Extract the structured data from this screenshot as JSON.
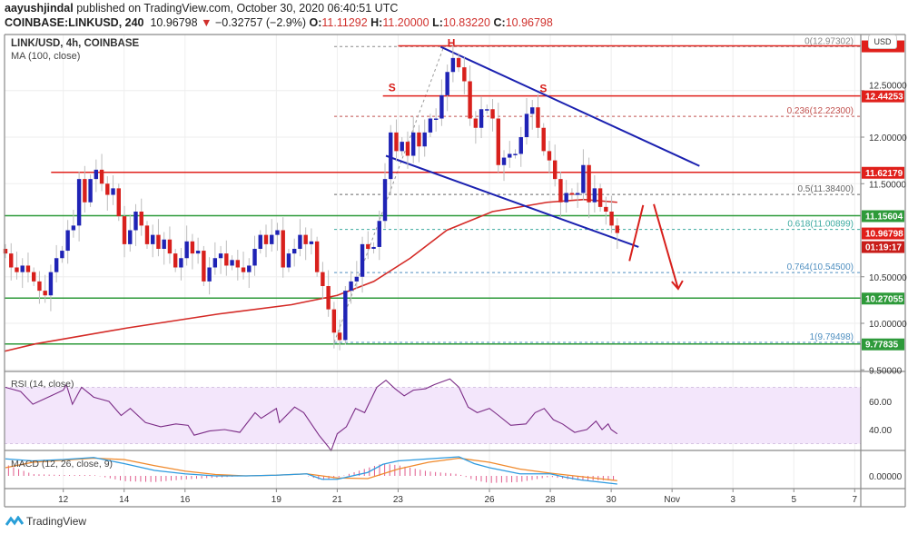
{
  "header": {
    "author": "aayushjindal",
    "published": " published on TradingView.com, October 30, 2020 06:40:51 UTC",
    "symbol": "COINBASE:LINKUSD, 240",
    "last": "10.96798",
    "change": "−0.32757 (−2.9%)",
    "o_label": "O:",
    "o": "11.11292",
    "h_label": "H:",
    "h": "11.20000",
    "l_label": "L:",
    "l": "10.83220",
    "c_label": "C:",
    "c": "10.96798",
    "down_icon": "triangle-down-icon"
  },
  "currency_button": "USD",
  "logo": "TradingView",
  "colors": {
    "up": "#1f23b5",
    "down": "#d8201c",
    "ma": "#d42a26",
    "rsi": "#7b2c86",
    "rsi_band": "#f3e6fb",
    "macd": "#2e9be0",
    "signal": "#f08a2c",
    "hist": "#e05a8c",
    "red_line": "#e0201b",
    "green_line": "#2e9a3a",
    "channel": "#1b21b0"
  },
  "chart_data": {
    "type": "candlestick",
    "title": "LINK/USD, 4h, COINBASE",
    "ma_label": "MA (100, close)",
    "x_range_days": [
      10.07,
      38.2
    ],
    "ylim": [
      9.45,
      13.1
    ],
    "first_candle_day": 10.1,
    "last_candle_day": 30.2,
    "closes": [
      10.75,
      10.6,
      10.55,
      10.62,
      10.55,
      10.45,
      10.35,
      10.3,
      10.55,
      10.7,
      10.78,
      11.0,
      11.05,
      11.55,
      11.3,
      11.55,
      11.65,
      11.5,
      11.38,
      11.45,
      11.15,
      10.85,
      11.0,
      11.2,
      11.05,
      10.85,
      10.95,
      10.8,
      10.9,
      10.75,
      10.6,
      10.7,
      10.88,
      10.75,
      10.78,
      10.45,
      10.6,
      10.7,
      10.75,
      10.62,
      10.68,
      10.6,
      10.55,
      10.62,
      10.8,
      10.95,
      10.85,
      10.95,
      11.0,
      10.6,
      10.75,
      10.8,
      10.95,
      10.85,
      10.88,
      10.55,
      10.4,
      10.15,
      9.9,
      9.82,
      10.35,
      10.45,
      10.5,
      10.85,
      10.8,
      10.82,
      11.1,
      11.55,
      12.05,
      11.85,
      11.95,
      11.8,
      12.05,
      11.9,
      12.05,
      12.2,
      12.2,
      12.45,
      12.7,
      12.85,
      12.75,
      12.6,
      12.2,
      12.1,
      12.3,
      12.3,
      12.2,
      11.7,
      11.78,
      11.82,
      11.82,
      12.0,
      12.25,
      12.32,
      12.1,
      11.85,
      11.75,
      11.55,
      11.3,
      11.4,
      11.38,
      11.4,
      11.7,
      11.3,
      11.45,
      11.25,
      11.2,
      11.05,
      10.97
    ],
    "ma100": [
      [
        10.07,
        9.7
      ],
      [
        11.1,
        9.78
      ],
      [
        14.1,
        9.95
      ],
      [
        17.1,
        10.1
      ],
      [
        19.5,
        10.2
      ],
      [
        21.0,
        10.3
      ],
      [
        22.2,
        10.45
      ],
      [
        23.4,
        10.7
      ],
      [
        24.6,
        11.0
      ],
      [
        26.1,
        11.2
      ],
      [
        27.9,
        11.3
      ],
      [
        29.1,
        11.33
      ],
      [
        30.2,
        11.3
      ]
    ],
    "price_ticks": [
      "12.50000",
      "12.00000",
      "11.50000",
      "10.50000",
      "10.00000",
      "9.50000"
    ],
    "price_tick_values": [
      12.5,
      12.0,
      11.5,
      10.5,
      10.0,
      9.5
    ],
    "hlines": [
      {
        "price": 12.98,
        "color": "red",
        "from_day": 23.0,
        "label": ""
      },
      {
        "price": 12.44253,
        "color": "red",
        "from_day": 22.5,
        "label": "12.44253"
      },
      {
        "price": 11.62179,
        "color": "red",
        "from_day": 11.6,
        "label": "11.62179"
      },
      {
        "price": 11.15604,
        "color": "green",
        "from_day": 10.07,
        "label": "11.15604"
      },
      {
        "price": 10.27055,
        "color": "green",
        "from_day": 10.07,
        "label": "10.27055"
      },
      {
        "price": 9.77835,
        "color": "green",
        "from_day": 10.07,
        "label": "9.77835"
      }
    ],
    "last_price_label": "10.96798",
    "countdown": "01:19:17",
    "fib_from_day": 20.9,
    "fib": [
      {
        "label": "0(12.97302)",
        "price": 12.97302,
        "color": "#888888"
      },
      {
        "label": "0.236(12.22300)",
        "price": 12.223,
        "color": "#c0504d"
      },
      {
        "label": "0.5(11.38400)",
        "price": 11.384,
        "color": "#666666"
      },
      {
        "label": "0.618(11.00899)",
        "price": 11.00899,
        "color": "#3aa99f"
      },
      {
        "label": "0.764(10.54500)",
        "price": 10.545,
        "color": "#4f8fc0"
      },
      {
        "label": "1(9.79498)",
        "price": 9.79498,
        "color": "#4f8fc0"
      }
    ],
    "fib_trend": [
      [
        20.9,
        9.795
      ],
      [
        24.5,
        12.973
      ]
    ],
    "channel": [
      [
        [
          24.4,
          12.97
        ],
        [
          32.9,
          11.69
        ]
      ],
      [
        [
          22.6,
          11.8
        ],
        [
          30.9,
          10.82
        ]
      ]
    ],
    "arrows": [
      [
        [
          30.6,
          10.67
        ],
        [
          31.05,
          11.27
        ]
      ],
      [
        [
          31.4,
          11.28
        ],
        [
          32.2,
          10.37
        ]
      ]
    ],
    "pattern_labels": [
      {
        "text": "S",
        "day": 22.8,
        "price": 12.58
      },
      {
        "text": "H",
        "day": 24.75,
        "price": 13.06
      },
      {
        "text": "S",
        "day": 27.77,
        "price": 12.57
      }
    ],
    "time_ticks": [
      {
        "label": "12",
        "day": 12
      },
      {
        "label": "14",
        "day": 14
      },
      {
        "label": "16",
        "day": 16
      },
      {
        "label": "19",
        "day": 19
      },
      {
        "label": "21",
        "day": 21
      },
      {
        "label": "23",
        "day": 23
      },
      {
        "label": "26",
        "day": 26
      },
      {
        "label": "28",
        "day": 28
      },
      {
        "label": "30",
        "day": 30
      },
      {
        "label": "Nov",
        "day": 32
      },
      {
        "label": "3",
        "day": 34
      },
      {
        "label": "5",
        "day": 36
      },
      {
        "label": "7",
        "day": 38
      }
    ],
    "rsi": {
      "label": "RSI (14, close)",
      "ticks": [
        "60.00",
        "40.00"
      ],
      "tick_values": [
        60,
        40
      ],
      "band": [
        30,
        70
      ],
      "points": [
        [
          10.1,
          70
        ],
        [
          10.6,
          67
        ],
        [
          11.0,
          58
        ],
        [
          11.5,
          63
        ],
        [
          12.0,
          68
        ],
        [
          12.1,
          72
        ],
        [
          12.3,
          58
        ],
        [
          12.6,
          70
        ],
        [
          13.0,
          63
        ],
        [
          13.5,
          60
        ],
        [
          13.9,
          50
        ],
        [
          14.2,
          55
        ],
        [
          14.7,
          45
        ],
        [
          15.2,
          42
        ],
        [
          15.7,
          44
        ],
        [
          16.1,
          43
        ],
        [
          16.3,
          36
        ],
        [
          16.8,
          39
        ],
        [
          17.3,
          40
        ],
        [
          17.8,
          38
        ],
        [
          18.3,
          52
        ],
        [
          18.5,
          48
        ],
        [
          19.0,
          55
        ],
        [
          19.1,
          45
        ],
        [
          19.6,
          56
        ],
        [
          19.9,
          52
        ],
        [
          20.4,
          36
        ],
        [
          20.7,
          28
        ],
        [
          20.8,
          25
        ],
        [
          21.0,
          37
        ],
        [
          21.3,
          42
        ],
        [
          21.6,
          55
        ],
        [
          21.9,
          52
        ],
        [
          22.3,
          70
        ],
        [
          22.6,
          75
        ],
        [
          22.9,
          69
        ],
        [
          23.2,
          64
        ],
        [
          23.5,
          68
        ],
        [
          23.9,
          69
        ],
        [
          24.2,
          72
        ],
        [
          24.7,
          76
        ],
        [
          25.0,
          70
        ],
        [
          25.3,
          56
        ],
        [
          25.6,
          52
        ],
        [
          26.0,
          55
        ],
        [
          26.3,
          50
        ],
        [
          26.7,
          43
        ],
        [
          27.2,
          44
        ],
        [
          27.5,
          52
        ],
        [
          27.8,
          55
        ],
        [
          28.1,
          47
        ],
        [
          28.4,
          44
        ],
        [
          28.8,
          38
        ],
        [
          29.2,
          40
        ],
        [
          29.5,
          46
        ],
        [
          29.7,
          40
        ],
        [
          29.9,
          44
        ],
        [
          30.0,
          40
        ],
        [
          30.2,
          37
        ]
      ]
    },
    "macd": {
      "label": "MACD (12, 26, close, 9)",
      "ticks": [
        "0.00000"
      ],
      "tick_values": [
        0
      ],
      "macd": [
        [
          10.1,
          0.25
        ],
        [
          11,
          0.22
        ],
        [
          12,
          0.24
        ],
        [
          13,
          0.27
        ],
        [
          14,
          0.18
        ],
        [
          15,
          0.08
        ],
        [
          16,
          0.03
        ],
        [
          17,
          0.0
        ],
        [
          18,
          0.0
        ],
        [
          19,
          0.01
        ],
        [
          20,
          0.03
        ],
        [
          20.5,
          -0.05
        ],
        [
          21,
          -0.05
        ],
        [
          22,
          0.05
        ],
        [
          22.5,
          0.17
        ],
        [
          23,
          0.22
        ],
        [
          24,
          0.25
        ],
        [
          25,
          0.28
        ],
        [
          25.5,
          0.18
        ],
        [
          26,
          0.12
        ],
        [
          27,
          0.03
        ],
        [
          28,
          0.03
        ],
        [
          28.5,
          -0.02
        ],
        [
          29,
          -0.06
        ],
        [
          30.2,
          -0.12
        ]
      ],
      "signal": [
        [
          10.1,
          0.12
        ],
        [
          11,
          0.2
        ],
        [
          12,
          0.23
        ],
        [
          13,
          0.26
        ],
        [
          14,
          0.24
        ],
        [
          15,
          0.15
        ],
        [
          16,
          0.07
        ],
        [
          17,
          0.02
        ],
        [
          18,
          0.0
        ],
        [
          19,
          0.01
        ],
        [
          20,
          0.03
        ],
        [
          21,
          -0.03
        ],
        [
          22,
          -0.04
        ],
        [
          23,
          0.1
        ],
        [
          24,
          0.2
        ],
        [
          25,
          0.26
        ],
        [
          26,
          0.2
        ],
        [
          27,
          0.1
        ],
        [
          28,
          0.04
        ],
        [
          29,
          -0.01
        ],
        [
          30.2,
          -0.07
        ]
      ]
    }
  }
}
